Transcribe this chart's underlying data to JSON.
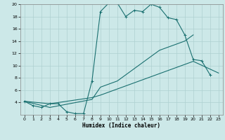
{
  "xlabel": "Humidex (Indice chaleur)",
  "xlim": [
    -0.5,
    23.5
  ],
  "ylim": [
    2,
    20
  ],
  "xticks": [
    0,
    1,
    2,
    3,
    4,
    5,
    6,
    7,
    8,
    9,
    10,
    11,
    12,
    13,
    14,
    15,
    16,
    17,
    18,
    19,
    20,
    21,
    22,
    23
  ],
  "yticks": [
    4,
    6,
    8,
    10,
    12,
    14,
    16,
    18,
    20
  ],
  "bg_color": "#cce8e8",
  "grid_color": "#aed0d0",
  "line_color": "#1a7070",
  "line1_x": [
    0,
    1,
    2,
    3,
    4,
    5,
    6,
    7,
    8,
    9,
    10,
    11,
    12,
    13,
    14,
    15,
    16,
    17,
    18,
    19,
    20,
    21,
    22
  ],
  "line1_y": [
    4.2,
    3.5,
    3.2,
    3.8,
    3.8,
    2.5,
    2.2,
    2.2,
    7.5,
    18.8,
    20.2,
    20.2,
    18.0,
    19.0,
    18.8,
    20.0,
    19.5,
    17.8,
    17.5,
    15.0,
    11.0,
    10.8,
    8.5
  ],
  "line2_x": [
    0,
    3,
    8,
    9,
    10,
    11,
    12,
    13,
    14,
    15,
    16,
    17,
    18,
    19,
    20
  ],
  "line2_y": [
    4.2,
    3.2,
    4.5,
    6.5,
    7.0,
    7.5,
    8.5,
    9.5,
    10.5,
    11.5,
    12.5,
    13.0,
    13.5,
    14.0,
    15.0
  ],
  "line3_x": [
    0,
    3,
    8,
    9,
    10,
    11,
    12,
    13,
    14,
    15,
    16,
    17,
    18,
    19,
    20,
    23
  ],
  "line3_y": [
    4.2,
    3.8,
    4.8,
    5.2,
    5.7,
    6.2,
    6.7,
    7.2,
    7.7,
    8.2,
    8.7,
    9.2,
    9.7,
    10.2,
    10.7,
    8.8
  ]
}
